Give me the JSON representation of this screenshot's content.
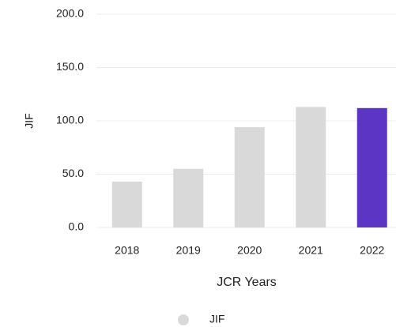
{
  "chart_data": {
    "type": "bar",
    "categories": [
      "2018",
      "2019",
      "2020",
      "2021",
      "2022"
    ],
    "series": [
      {
        "name": "JIF",
        "color": "#d9d9d9",
        "values": [
          43,
          55,
          94,
          113,
          112
        ]
      }
    ],
    "colors": [
      "#d9d9d9",
      "#d9d9d9",
      "#d9d9d9",
      "#d9d9d9",
      "#5c35c5"
    ],
    "ylim": [
      0,
      200
    ],
    "yticks": [
      {
        "value": 0,
        "label": "0.0"
      },
      {
        "value": 50,
        "label": "50.0"
      },
      {
        "value": 100,
        "label": "100.0"
      },
      {
        "value": 150,
        "label": "150.0"
      },
      {
        "value": 200,
        "label": "200.0"
      }
    ],
    "ylabel": "JIF",
    "xlabel": "JCR Years",
    "grid": true,
    "legend": "bottom"
  }
}
